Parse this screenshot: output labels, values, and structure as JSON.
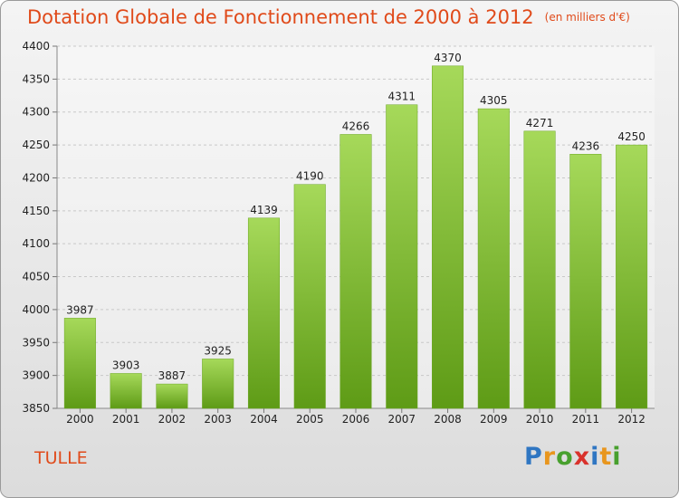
{
  "chart_data": {
    "type": "bar",
    "title": "Dotation Globale de Fonctionnement de 2000 à 2012",
    "subtitle": "(en milliers d'€)",
    "categories": [
      "2000",
      "2001",
      "2002",
      "2003",
      "2004",
      "2005",
      "2006",
      "2007",
      "2008",
      "2009",
      "2010",
      "2011",
      "2012"
    ],
    "values": [
      3987,
      3903,
      3887,
      3925,
      4139,
      4190,
      4266,
      4311,
      4370,
      4305,
      4271,
      4236,
      4250
    ],
    "ylim": [
      3850,
      4400
    ],
    "yticks": [
      3850,
      3900,
      3950,
      4000,
      4050,
      4100,
      4150,
      4200,
      4250,
      4300,
      4350,
      4400
    ],
    "grid": true,
    "colors": {
      "bar": "#7dbb2e",
      "bar_light": "#a6d95a",
      "bar_dark": "#5e9b16",
      "title": "#e04a1a"
    }
  },
  "footer": {
    "city": "TULLE",
    "logo": "Proxiti"
  }
}
